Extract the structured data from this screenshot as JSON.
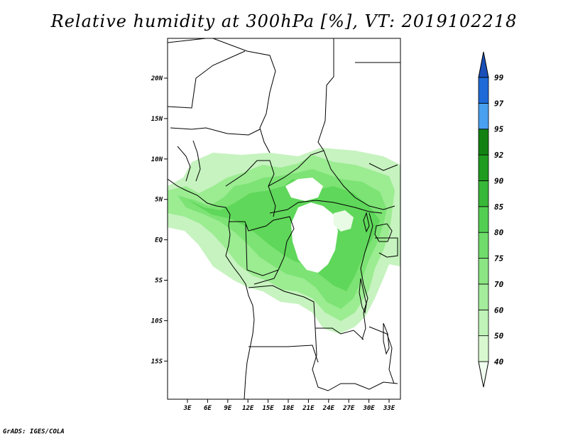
{
  "title": "Relative humidity at 300hPa [%], VT: 2019102218",
  "credit": "GrADS: IGES/COLA",
  "map": {
    "lat_labels": [
      "20N",
      "15N",
      "10N",
      "5N",
      "EQ",
      "5S",
      "10S",
      "15S"
    ],
    "lon_labels": [
      "3E",
      "6E",
      "9E",
      "12E",
      "15E",
      "18E",
      "21E",
      "24E",
      "27E",
      "30E",
      "33E"
    ]
  },
  "colorbar": {
    "levels": [
      "40",
      "50",
      "60",
      "70",
      "75",
      "80",
      "85",
      "90",
      "92",
      "95",
      "97",
      "99"
    ],
    "colors": [
      "#f0fff0",
      "#d8f8d0",
      "#bff3b8",
      "#a4ed9c",
      "#8be583",
      "#6fdc6b",
      "#52cf52",
      "#38b838",
      "#1f9b1f",
      "#118211",
      "#4aa0f0",
      "#1e6ad8",
      "#1a4fb8"
    ]
  }
}
